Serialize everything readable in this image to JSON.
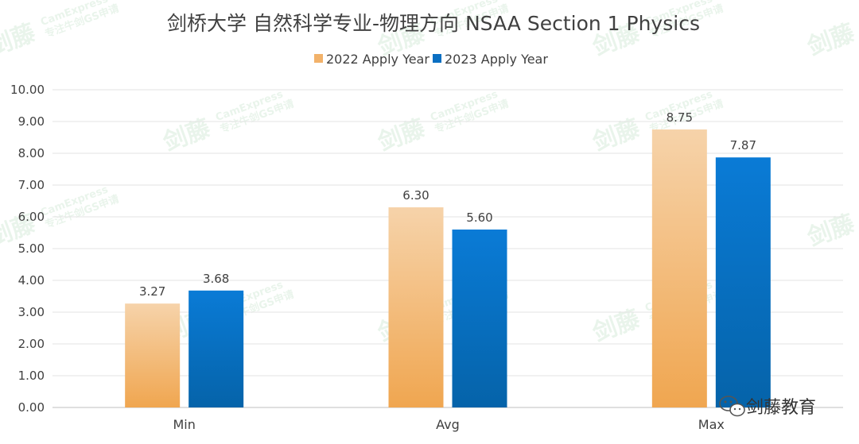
{
  "chart_data": {
    "type": "bar",
    "title": "剑桥大学 自然科学专业-物理方向 NSAA Section 1 Physics",
    "categories": [
      "Min",
      "Avg",
      "Max"
    ],
    "series": [
      {
        "name": "2022 Apply Year",
        "values": [
          3.27,
          6.3,
          8.75
        ],
        "color_top": "#f6d3aa",
        "color_bottom": "#f0a650"
      },
      {
        "name": "2023 Apply Year",
        "values": [
          3.68,
          5.6,
          7.87
        ],
        "color_top": "#0a7bd6",
        "color_bottom": "#0563a9"
      }
    ],
    "value_labels": [
      [
        "3.27",
        "6.30",
        "8.75"
      ],
      [
        "3.68",
        "5.60",
        "7.87"
      ]
    ],
    "yticks": [
      "0.00",
      "1.00",
      "2.00",
      "3.00",
      "4.00",
      "5.00",
      "6.00",
      "7.00",
      "8.00",
      "9.00",
      "10.00"
    ],
    "ylim": [
      0,
      10
    ],
    "grid": true,
    "legend_position": "top"
  },
  "watermark": {
    "brand": "剑藤",
    "name": "CamExpress",
    "slogan": "专注牛剑GS申请"
  },
  "branding": {
    "text": "剑藤教育",
    "icon": "wechat-icon"
  }
}
